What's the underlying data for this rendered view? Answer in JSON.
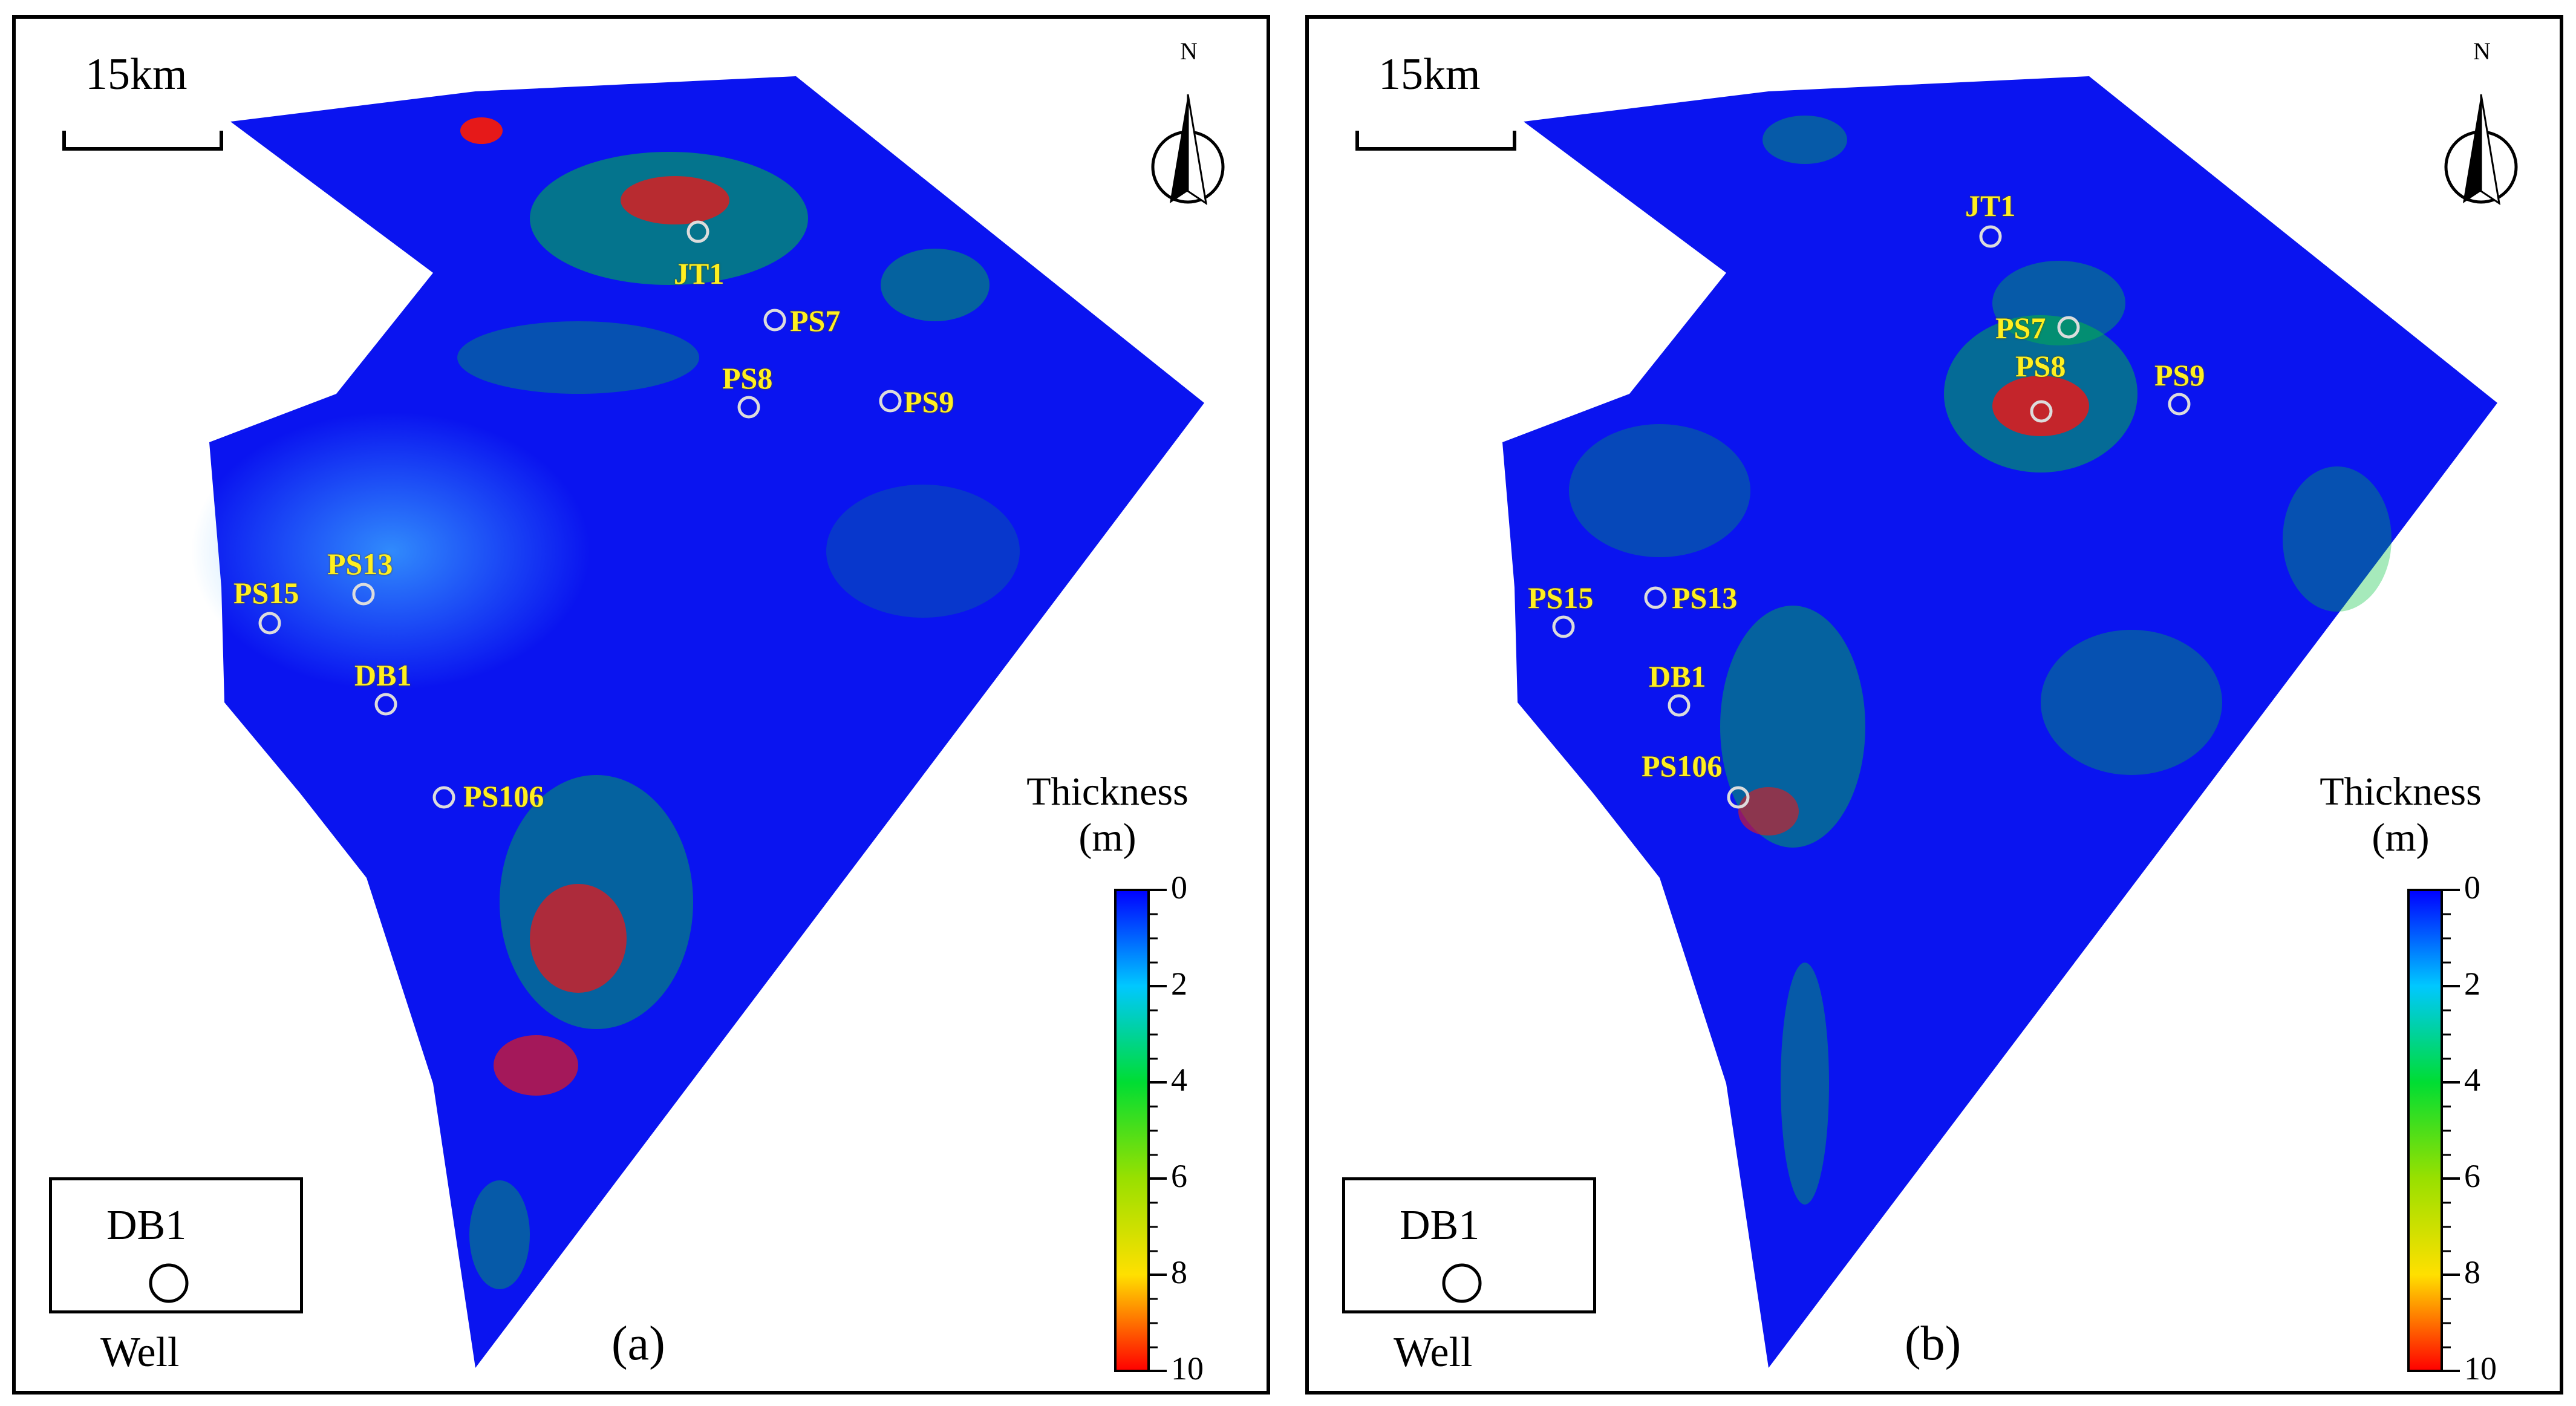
{
  "scale_bar_label": "15km",
  "north_label": "N",
  "legend": {
    "well_name": "DB1",
    "caption": "Well"
  },
  "colorbar": {
    "title_line1": "Thickness",
    "title_line2": "(m)",
    "ticks": [
      "0",
      "2",
      "4",
      "6",
      "8",
      "10"
    ],
    "range": [
      0,
      10
    ],
    "colors": [
      "#0000ff",
      "#00c8ff",
      "#00dd33",
      "#99e000",
      "#ffe000",
      "#ff0000"
    ]
  },
  "panels": [
    {
      "letter": "(a)",
      "wells": [
        {
          "name": "JT1"
        },
        {
          "name": "PS7"
        },
        {
          "name": "PS8"
        },
        {
          "name": "PS9"
        },
        {
          "name": "PS13"
        },
        {
          "name": "PS15"
        },
        {
          "name": "DB1"
        },
        {
          "name": "PS106"
        }
      ]
    },
    {
      "letter": "(b)",
      "wells": [
        {
          "name": "JT1"
        },
        {
          "name": "PS7"
        },
        {
          "name": "PS8"
        },
        {
          "name": "PS9"
        },
        {
          "name": "PS13"
        },
        {
          "name": "PS15"
        },
        {
          "name": "DB1"
        },
        {
          "name": "PS106"
        }
      ]
    }
  ]
}
